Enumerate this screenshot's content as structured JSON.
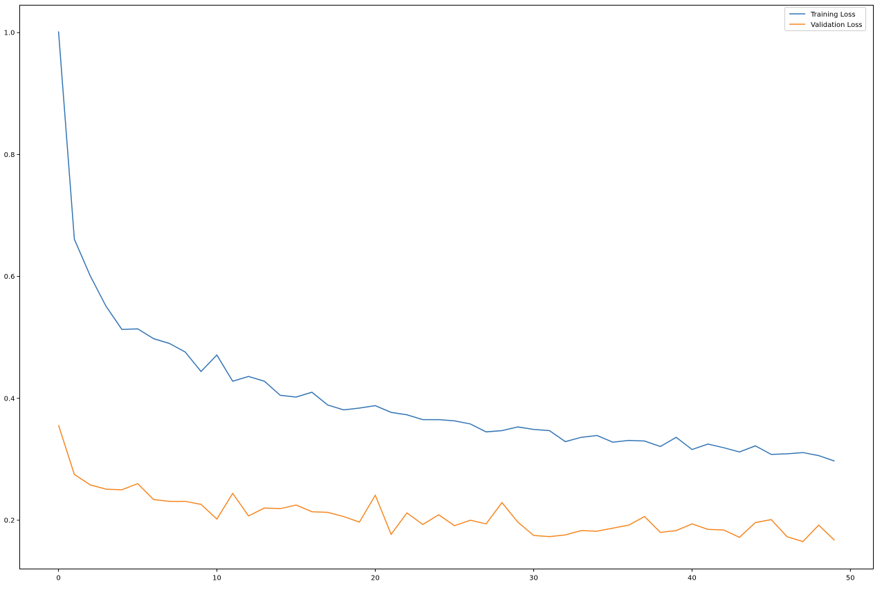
{
  "chart_data": {
    "type": "line",
    "title": "",
    "xlabel": "",
    "ylabel": "",
    "xlim": [
      -2.45,
      51.45
    ],
    "ylim": [
      0.12,
      1.045
    ],
    "xticks": [
      0,
      10,
      20,
      30,
      40,
      50
    ],
    "yticks": [
      0.2,
      0.4,
      0.6,
      0.8,
      1.0
    ],
    "xtick_labels": [
      "0",
      "10",
      "20",
      "30",
      "40",
      "50"
    ],
    "ytick_labels": [
      "0.2",
      "0.4",
      "0.6",
      "0.8",
      "1.0"
    ],
    "grid": false,
    "legend_position": "top-right",
    "x": [
      0,
      1,
      2,
      3,
      4,
      5,
      6,
      7,
      8,
      9,
      10,
      11,
      12,
      13,
      14,
      15,
      16,
      17,
      18,
      19,
      20,
      21,
      22,
      23,
      24,
      25,
      26,
      27,
      28,
      29,
      30,
      31,
      32,
      33,
      34,
      35,
      36,
      37,
      38,
      39,
      40,
      41,
      42,
      43,
      44,
      45,
      46,
      47,
      48,
      49
    ],
    "series": [
      {
        "name": "Training Loss",
        "color": "#3274b5",
        "values": [
          1.002,
          0.661,
          0.601,
          0.551,
          0.513,
          0.514,
          0.498,
          0.49,
          0.476,
          0.444,
          0.471,
          0.428,
          0.436,
          0.428,
          0.405,
          0.402,
          0.41,
          0.389,
          0.381,
          0.384,
          0.388,
          0.377,
          0.373,
          0.365,
          0.365,
          0.363,
          0.358,
          0.345,
          0.347,
          0.353,
          0.349,
          0.347,
          0.329,
          0.336,
          0.339,
          0.328,
          0.331,
          0.33,
          0.321,
          0.336,
          0.316,
          0.325,
          0.319,
          0.312,
          0.322,
          0.308,
          0.309,
          0.311,
          0.306,
          0.297
        ]
      },
      {
        "name": "Validation Loss",
        "color": "#f5861f",
        "values": [
          0.356,
          0.275,
          0.258,
          0.251,
          0.25,
          0.26,
          0.234,
          0.231,
          0.231,
          0.226,
          0.202,
          0.244,
          0.207,
          0.22,
          0.219,
          0.225,
          0.214,
          0.213,
          0.206,
          0.197,
          0.241,
          0.177,
          0.212,
          0.193,
          0.209,
          0.191,
          0.2,
          0.194,
          0.229,
          0.197,
          0.175,
          0.173,
          0.176,
          0.183,
          0.182,
          0.187,
          0.192,
          0.206,
          0.18,
          0.183,
          0.194,
          0.185,
          0.184,
          0.172,
          0.196,
          0.201,
          0.173,
          0.165,
          0.192,
          0.167
        ]
      }
    ]
  }
}
